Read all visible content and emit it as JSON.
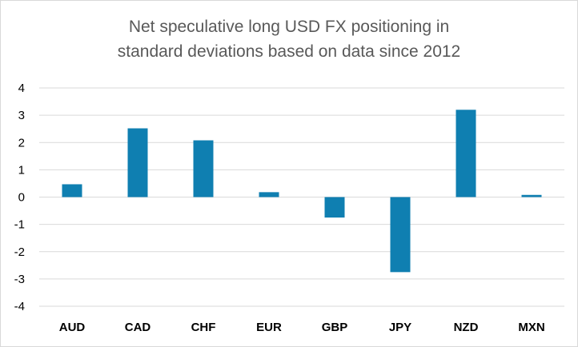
{
  "chart_data": {
    "type": "bar",
    "title_line1": "Net speculative long USD FX positioning in",
    "title_line2": "standard deviations based on data since 2012",
    "categories": [
      "AUD",
      "CAD",
      "CHF",
      "EUR",
      "GBP",
      "JPY",
      "NZD",
      "MXN"
    ],
    "values": [
      0.47,
      2.52,
      2.08,
      0.18,
      -0.75,
      -2.75,
      3.2,
      0.08
    ],
    "ylim": [
      -4,
      4
    ],
    "yticks": [
      "4",
      "3",
      "2",
      "1",
      "0",
      "-1",
      "-2",
      "-3",
      "-4"
    ],
    "grid": true,
    "bar_color": "#0f7fb1",
    "grid_color": "#d9d9d9"
  }
}
